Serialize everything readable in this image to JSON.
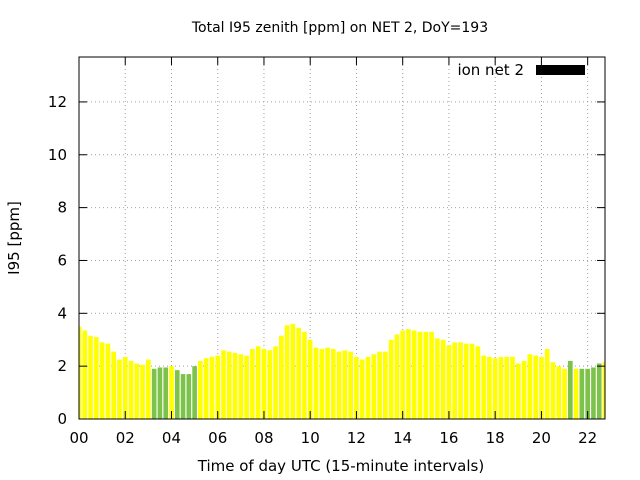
{
  "chart_data": {
    "type": "bar",
    "title": "Total I95 zenith [ppm] on NET 2, DoY=193",
    "xlabel": "Time of day UTC (15-minute intervals)",
    "ylabel": "I95 [ppm]",
    "ylim": [
      0,
      13.7
    ],
    "xlim": [
      0,
      22.75
    ],
    "yticks": [
      0,
      2,
      4,
      6,
      8,
      10,
      12
    ],
    "xticks": [
      0,
      2,
      4,
      6,
      8,
      10,
      12,
      14,
      16,
      18,
      20,
      22
    ],
    "xtick_labels": [
      "00",
      "02",
      "04",
      "06",
      "08",
      "10",
      "12",
      "14",
      "16",
      "18",
      "20",
      "22"
    ],
    "ytick_labels": [
      "0",
      "2",
      "4",
      "6",
      "8",
      "10",
      "12"
    ],
    "grid": true,
    "legend": {
      "label": "ion net 2",
      "color": "#000000",
      "placement": "top-right"
    },
    "bar_width_hours": 0.2,
    "x": [
      0.0,
      0.25,
      0.5,
      0.75,
      1.0,
      1.25,
      1.5,
      1.75,
      2.0,
      2.25,
      2.5,
      2.75,
      3.0,
      3.25,
      3.5,
      3.75,
      4.0,
      4.25,
      4.5,
      4.75,
      5.0,
      5.25,
      5.5,
      5.75,
      6.0,
      6.25,
      6.5,
      6.75,
      7.0,
      7.25,
      7.5,
      7.75,
      8.0,
      8.25,
      8.5,
      8.75,
      9.0,
      9.25,
      9.5,
      9.75,
      10.0,
      10.25,
      10.5,
      10.75,
      11.0,
      11.25,
      11.5,
      11.75,
      12.0,
      12.25,
      12.5,
      12.75,
      13.0,
      13.25,
      13.5,
      13.75,
      14.0,
      14.25,
      14.5,
      14.75,
      15.0,
      15.25,
      15.5,
      15.75,
      16.0,
      16.25,
      16.5,
      16.75,
      17.0,
      17.25,
      17.5,
      17.75,
      18.0,
      18.25,
      18.5,
      18.75,
      19.0,
      19.25,
      19.5,
      19.75,
      20.0,
      20.25,
      20.5,
      20.75,
      21.0,
      21.25,
      21.5,
      21.75,
      22.0,
      22.25,
      22.5,
      22.75
    ],
    "values": [
      3.5,
      3.35,
      3.15,
      3.1,
      2.9,
      2.85,
      2.55,
      2.25,
      2.35,
      2.2,
      2.1,
      2.05,
      2.25,
      1.9,
      1.95,
      1.95,
      2.0,
      1.85,
      1.7,
      1.7,
      2.0,
      2.2,
      2.3,
      2.35,
      2.4,
      2.6,
      2.55,
      2.5,
      2.45,
      2.4,
      2.65,
      2.75,
      2.65,
      2.6,
      2.75,
      3.15,
      3.55,
      3.6,
      3.45,
      3.3,
      3.0,
      2.7,
      2.65,
      2.7,
      2.65,
      2.55,
      2.6,
      2.55,
      2.35,
      2.25,
      2.35,
      2.45,
      2.55,
      2.55,
      3.0,
      3.2,
      3.35,
      3.4,
      3.35,
      3.3,
      3.3,
      3.3,
      3.05,
      3.0,
      2.8,
      2.9,
      2.9,
      2.85,
      2.85,
      2.75,
      2.4,
      2.35,
      2.3,
      2.35,
      2.35,
      2.35,
      2.1,
      2.2,
      2.45,
      2.4,
      2.35,
      2.65,
      2.15,
      2.0,
      1.9,
      2.2,
      1.9,
      1.9,
      1.9,
      1.95,
      2.1,
      2.15
    ],
    "colors": [
      "#ffff00",
      "#ffff00",
      "#ffff00",
      "#ffff00",
      "#ffff00",
      "#ffff00",
      "#ffff00",
      "#ffff00",
      "#ffff00",
      "#ffff00",
      "#ffff00",
      "#ffff00",
      "#ffff00",
      "#7dc24a",
      "#7dc24a",
      "#7dc24a",
      "#ffff00",
      "#7dc24a",
      "#7dc24a",
      "#7dc24a",
      "#7dc24a",
      "#ffff00",
      "#ffff00",
      "#ffff00",
      "#ffff00",
      "#ffff00",
      "#ffff00",
      "#ffff00",
      "#ffff00",
      "#ffff00",
      "#ffff00",
      "#ffff00",
      "#ffff00",
      "#ffff00",
      "#ffff00",
      "#ffff00",
      "#ffff00",
      "#ffff00",
      "#ffff00",
      "#ffff00",
      "#ffff00",
      "#ffff00",
      "#ffff00",
      "#ffff00",
      "#ffff00",
      "#ffff00",
      "#ffff00",
      "#ffff00",
      "#ffff00",
      "#ffff00",
      "#ffff00",
      "#ffff00",
      "#ffff00",
      "#ffff00",
      "#ffff00",
      "#ffff00",
      "#ffff00",
      "#ffff00",
      "#ffff00",
      "#ffff00",
      "#ffff00",
      "#ffff00",
      "#ffff00",
      "#ffff00",
      "#ffff00",
      "#ffff00",
      "#ffff00",
      "#ffff00",
      "#ffff00",
      "#ffff00",
      "#ffff00",
      "#ffff00",
      "#ffff00",
      "#ffff00",
      "#ffff00",
      "#ffff00",
      "#ffff00",
      "#ffff00",
      "#ffff00",
      "#ffff00",
      "#ffff00",
      "#ffff00",
      "#ffff00",
      "#ffff00",
      "#ffff00",
      "#7dc24a",
      "#ffff00",
      "#7dc24a",
      "#7dc24a",
      "#7dc24a",
      "#7dc24a",
      "#ffff00"
    ]
  }
}
